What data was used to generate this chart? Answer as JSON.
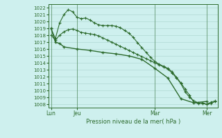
{
  "background_color": "#cef0ee",
  "grid_color": "#b0d8d4",
  "line_color": "#2d6b2d",
  "title": "Pression niveau de la mer( hPa )",
  "xtick_labels": [
    "Lun",
    "Jeu",
    "Mar",
    "Mer"
  ],
  "xtick_positions": [
    0,
    6,
    24,
    36
  ],
  "ylim": [
    1007.5,
    1022.5
  ],
  "yticks": [
    1008,
    1009,
    1010,
    1011,
    1012,
    1013,
    1014,
    1015,
    1016,
    1017,
    1018,
    1019,
    1020,
    1021,
    1022
  ],
  "line1_x": [
    0,
    1,
    2,
    3,
    4,
    5,
    6,
    7,
    8,
    9,
    10,
    11,
    12,
    13,
    14,
    15,
    16,
    17,
    18,
    19,
    20,
    21,
    22,
    23,
    24,
    25,
    26,
    27,
    28,
    29,
    30,
    31,
    32,
    33,
    34,
    35,
    36,
    37,
    38
  ],
  "line1_y": [
    1019.0,
    1017.5,
    1019.8,
    1021.0,
    1021.7,
    1021.4,
    1020.6,
    1020.4,
    1020.5,
    1020.2,
    1019.8,
    1019.5,
    1019.4,
    1019.4,
    1019.4,
    1019.3,
    1019.1,
    1018.7,
    1018.3,
    1017.7,
    1016.9,
    1016.2,
    1015.5,
    1014.8,
    1014.2,
    1013.8,
    1013.5,
    1013.2,
    1012.7,
    1011.9,
    1011.1,
    1010.2,
    1009.3,
    1008.3,
    1008.1,
    1008.2,
    1008.0,
    1008.3,
    1008.5
  ],
  "line2_x": [
    0,
    1,
    2,
    3,
    4,
    5,
    6,
    7,
    8,
    9,
    10,
    11,
    12,
    13,
    14,
    15,
    16,
    17,
    18,
    19,
    20,
    21,
    22,
    23,
    24,
    25,
    26,
    27,
    28,
    29,
    30,
    31,
    32,
    33,
    34,
    35,
    36,
    37,
    38
  ],
  "line2_y": [
    1018.0,
    1017.3,
    1018.0,
    1018.5,
    1018.8,
    1018.9,
    1018.7,
    1018.4,
    1018.3,
    1018.2,
    1018.1,
    1017.9,
    1017.6,
    1017.3,
    1017.0,
    1016.7,
    1016.4,
    1016.1,
    1015.8,
    1015.5,
    1015.2,
    1014.9,
    1014.6,
    1014.3,
    1014.0,
    1013.7,
    1013.4,
    1013.1,
    1012.5,
    1011.8,
    1011.0,
    1009.8,
    1009.0,
    1008.5,
    1008.2,
    1008.1,
    1008.0,
    1008.1,
    1008.4
  ],
  "line3_x": [
    0,
    1,
    2,
    3,
    6,
    9,
    12,
    15,
    18,
    21,
    24,
    27,
    30,
    33,
    36
  ],
  "line3_y": [
    1019.0,
    1017.0,
    1016.8,
    1016.3,
    1016.0,
    1015.8,
    1015.5,
    1015.3,
    1015.0,
    1014.5,
    1013.2,
    1011.8,
    1008.8,
    1008.2,
    1008.4
  ],
  "xlim": [
    -0.5,
    38.5
  ]
}
